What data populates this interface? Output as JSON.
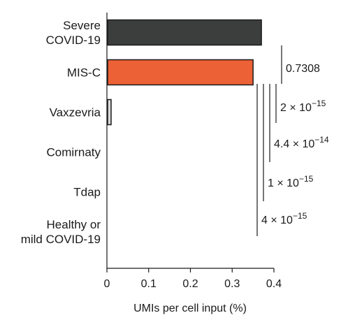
{
  "chart_data": {
    "type": "bar",
    "orientation": "horizontal",
    "categories": [
      [
        "Severe",
        "COVID-19"
      ],
      [
        "MIS-C"
      ],
      [
        "Vaxzevria"
      ],
      [
        "Comirnaty"
      ],
      [
        "Tdap"
      ],
      [
        "Healthy or",
        "mild COVID-19"
      ]
    ],
    "values": [
      0.37,
      0.35,
      0.01,
      0,
      0,
      0
    ],
    "colors": [
      "#3c3e3e",
      "#ec6136",
      "#d9d9d9",
      "#ffffff",
      "#ffffff",
      "#ffffff"
    ],
    "xlabel": "UMIs per cell input (%)",
    "xlim": [
      0,
      0.4
    ],
    "xticks": [
      "0",
      "0.1",
      "0.2",
      "0.3",
      "0.4"
    ],
    "grid": false,
    "comparisons": [
      {
        "from": "Severe COVID-19",
        "to": "MIS-C",
        "label_base": "0.7308",
        "label_exp": ""
      },
      {
        "from": "MIS-C",
        "to": "Vaxzevria",
        "label_base": "2 × 10",
        "label_exp": "−15"
      },
      {
        "from": "MIS-C",
        "to": "Comirnaty",
        "label_base": "4.4 × 10",
        "label_exp": "−14"
      },
      {
        "from": "MIS-C",
        "to": "Tdap",
        "label_base": "1 × 10",
        "label_exp": "−15"
      },
      {
        "from": "MIS-C",
        "to": "Healthy or mild COVID-19",
        "label_base": "4 × 10",
        "label_exp": "−15"
      }
    ]
  }
}
